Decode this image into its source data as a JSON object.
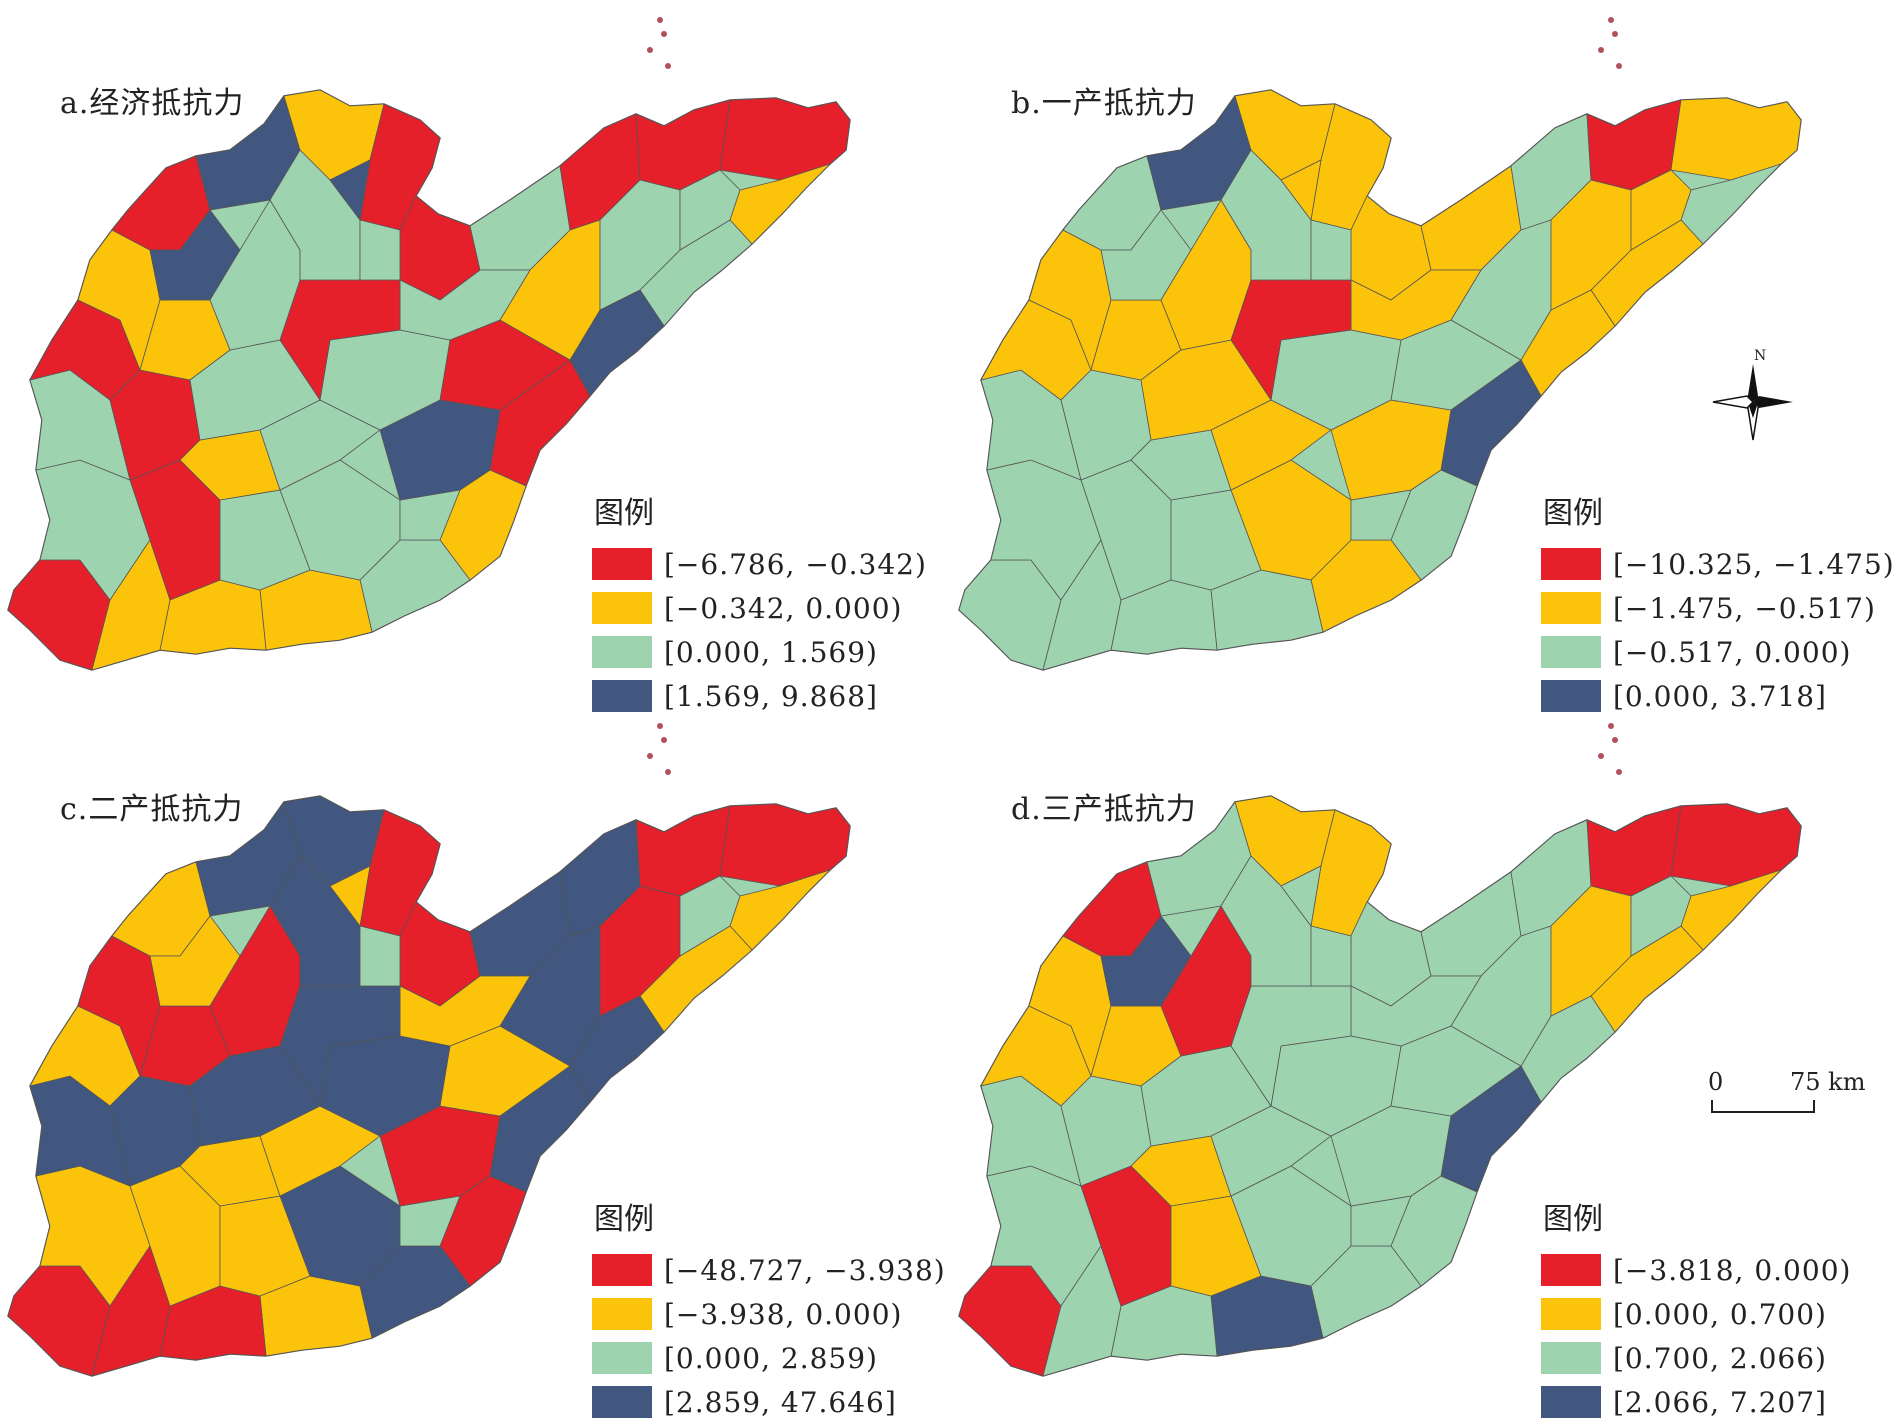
{
  "colors": {
    "red": "#E5202A",
    "yellow": "#FBC40A",
    "green": "#9ED3B0",
    "blue": "#41577F",
    "boundary": "#555555"
  },
  "panels": [
    {
      "title": "a.经济抵抗力",
      "legend_title": "图例",
      "legend": [
        {
          "label": "[−6.786, −0.342)",
          "color": "#E5202A"
        },
        {
          "label": "[−0.342, 0.000)",
          "color": "#FBC40A"
        },
        {
          "label": "[0.000, 1.569)",
          "color": "#9ED3B0"
        },
        {
          "label": "[1.569, 9.868]",
          "color": "#41577F"
        }
      ]
    },
    {
      "title": "b.一产抵抗力",
      "legend_title": "图例",
      "legend": [
        {
          "label": "[−10.325, −1.475)",
          "color": "#E5202A"
        },
        {
          "label": "[−1.475, −0.517)",
          "color": "#FBC40A"
        },
        {
          "label": "[−0.517, 0.000)",
          "color": "#9ED3B0"
        },
        {
          "label": "[0.000, 3.718]",
          "color": "#41577F"
        }
      ]
    },
    {
      "title": "c.二产抵抗力",
      "legend_title": "图例",
      "legend": [
        {
          "label": "[−48.727, −3.938)",
          "color": "#E5202A"
        },
        {
          "label": "[−3.938, 0.000)",
          "color": "#FBC40A"
        },
        {
          "label": "[0.000, 2.859)",
          "color": "#9ED3B0"
        },
        {
          "label": "[2.859, 47.646]",
          "color": "#41577F"
        }
      ]
    },
    {
      "title": "d.三产抵抗力",
      "legend_title": "图例",
      "legend": [
        {
          "label": "[−3.818, 0.000)",
          "color": "#E5202A"
        },
        {
          "label": "[0.000, 0.700)",
          "color": "#FBC40A"
        },
        {
          "label": "[0.700, 2.066)",
          "color": "#9ED3B0"
        },
        {
          "label": "[2.066, 7.207]",
          "color": "#41577F"
        }
      ]
    }
  ],
  "north_label": "N",
  "scale": {
    "zero": "0",
    "end": "75 km"
  }
}
